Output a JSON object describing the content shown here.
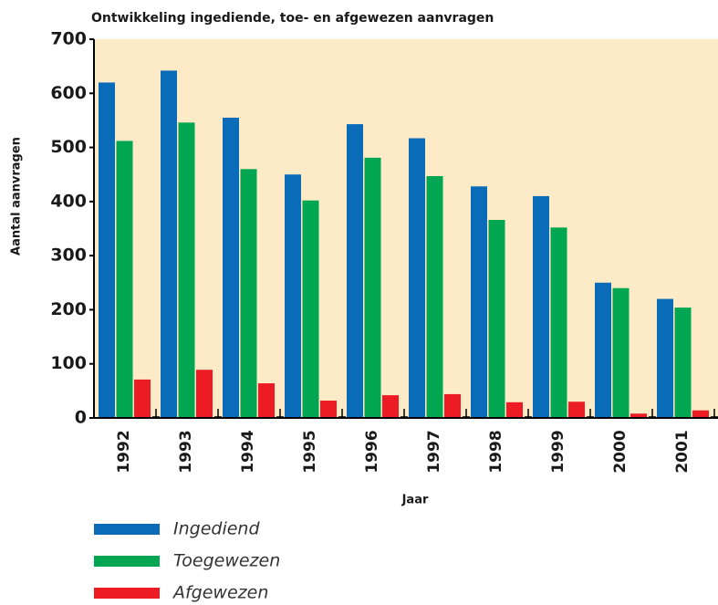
{
  "chart_data": {
    "type": "bar",
    "title": "Ontwikkeling ingediende, toe-  en afgewezen aanvragen",
    "x_label": "Jaar",
    "y_label": "Aantal aanvragen",
    "categories": [
      "1992",
      "1993",
      "1994",
      "1995",
      "1996",
      "1997",
      "1998",
      "1999",
      "2000",
      "2001"
    ],
    "series": [
      {
        "name": "Ingediend",
        "color": "#0a6bb8",
        "values": [
          620,
          642,
          555,
          450,
          543,
          517,
          428,
          410,
          250,
          220
        ]
      },
      {
        "name": "Toegewezen",
        "color": "#00a651",
        "values": [
          512,
          546,
          460,
          402,
          481,
          447,
          366,
          352,
          240,
          204
        ]
      },
      {
        "name": "Afgewezen",
        "color": "#ed1c24",
        "values": [
          71,
          89,
          64,
          32,
          42,
          44,
          29,
          30,
          8,
          14
        ]
      }
    ],
    "ylim": [
      0,
      700
    ],
    "yticks": [
      0,
      100,
      200,
      300,
      400,
      500,
      600,
      700
    ],
    "background": "#fdebc8"
  }
}
